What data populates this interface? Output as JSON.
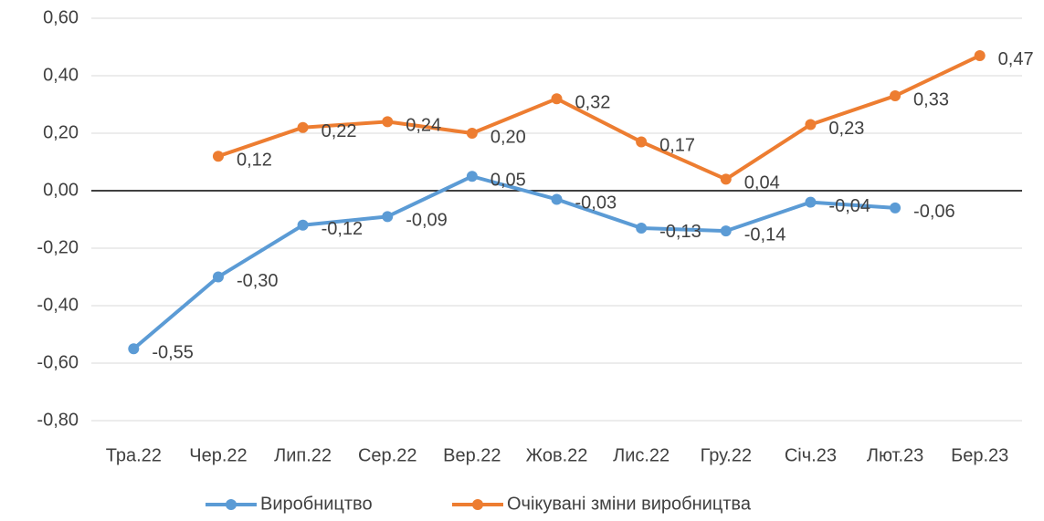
{
  "chart_data": {
    "type": "line",
    "categories": [
      "Тра.22",
      "Чер.22",
      "Лип.22",
      "Сер.22",
      "Вер.22",
      "Жов.22",
      "Лис.22",
      "Гру.22",
      "Січ.23",
      "Лют.23",
      "Бер.23"
    ],
    "series": [
      {
        "name": "Виробництво",
        "color": "#5b9bd5",
        "values": [
          -0.55,
          -0.3,
          -0.12,
          -0.09,
          0.05,
          -0.03,
          -0.13,
          -0.14,
          -0.04,
          -0.06,
          null
        ],
        "value_labels": [
          "-0,55",
          "-0,30",
          "-0,12",
          "-0,09",
          "0,05",
          "-0,03",
          "-0,13",
          "-0,14",
          "-0,04",
          "-0,06",
          null
        ]
      },
      {
        "name": "Очікувані зміни виробництва",
        "color": "#ed7d31",
        "values": [
          null,
          0.12,
          0.22,
          0.24,
          0.2,
          0.32,
          0.17,
          0.04,
          0.23,
          0.33,
          0.47
        ],
        "value_labels": [
          null,
          "0,12",
          "0,22",
          "0,24",
          "0,20",
          "0,32",
          "0,17",
          "0,04",
          "0,23",
          "0,33",
          "0,47"
        ]
      }
    ],
    "ylim": [
      -0.8,
      0.6
    ],
    "yticks": [
      {
        "value": -0.8,
        "label": "-0,80"
      },
      {
        "value": -0.6,
        "label": "-0,60"
      },
      {
        "value": -0.4,
        "label": "-0,40"
      },
      {
        "value": -0.2,
        "label": "-0,20"
      },
      {
        "value": 0,
        "label": "0,00"
      },
      {
        "value": 0.2,
        "label": "0,20"
      },
      {
        "value": 0.4,
        "label": "0,40"
      },
      {
        "value": 0.6,
        "label": "0,60"
      }
    ],
    "grid": true,
    "legend": "bottom"
  }
}
